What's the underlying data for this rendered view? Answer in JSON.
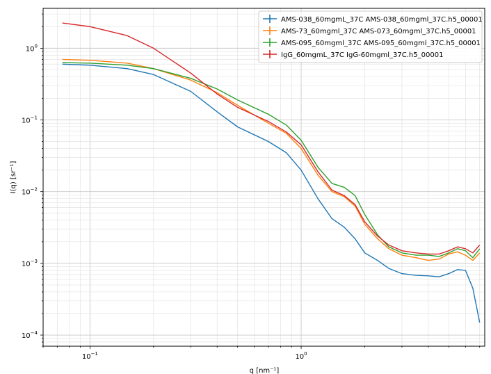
{
  "chart_data": {
    "type": "line",
    "title": "",
    "xlabel": "q [nm⁻¹]",
    "ylabel": "I(q) [sr⁻¹]",
    "xscale": "log",
    "yscale": "log",
    "xlim": [
      0.06,
      7.4
    ],
    "ylim": [
      7e-05,
      3.6
    ],
    "grid": "major and minor",
    "legend_position": "top-right",
    "x_ticks": [
      {
        "value": 0.1,
        "base": "10",
        "exp": "−1"
      },
      {
        "value": 1,
        "base": "10",
        "exp": "0"
      }
    ],
    "y_ticks": [
      {
        "value": 0.0001,
        "base": "10",
        "exp": "−4"
      },
      {
        "value": 0.001,
        "base": "10",
        "exp": "−3"
      },
      {
        "value": 0.01,
        "base": "10",
        "exp": "−2"
      },
      {
        "value": 0.1,
        "base": "10",
        "exp": "−1"
      },
      {
        "value": 1,
        "base": "10",
        "exp": "0"
      }
    ],
    "series": [
      {
        "name": "AMS-038_60mgmL_37C AMS-038_60mgml_37C.h5_00001",
        "color": "#1f77b4",
        "q": [
          0.074,
          0.1,
          0.15,
          0.2,
          0.3,
          0.4,
          0.5,
          0.7,
          0.85,
          1.0,
          1.2,
          1.4,
          1.6,
          1.8,
          2.0,
          2.3,
          2.6,
          3.0,
          3.5,
          4.0,
          4.5,
          5.0,
          5.5,
          6.0,
          6.5,
          7.0
        ],
        "I": [
          0.6,
          0.58,
          0.52,
          0.43,
          0.25,
          0.13,
          0.08,
          0.05,
          0.035,
          0.02,
          0.008,
          0.0042,
          0.0032,
          0.0022,
          0.0014,
          0.0011,
          0.00085,
          0.00072,
          0.00068,
          0.00067,
          0.00065,
          0.00072,
          0.00082,
          0.0008,
          0.00045,
          0.00015
        ]
      },
      {
        "name": "AMS-73_60mgml_37C AMS-073_60mgml_37C.h5_00001",
        "color": "#ff7f0e",
        "q": [
          0.074,
          0.1,
          0.15,
          0.2,
          0.3,
          0.4,
          0.5,
          0.7,
          0.85,
          1.0,
          1.2,
          1.4,
          1.6,
          1.8,
          2.0,
          2.3,
          2.6,
          3.0,
          3.5,
          4.0,
          4.5,
          5.0,
          5.5,
          6.0,
          6.5,
          7.0
        ],
        "I": [
          0.7,
          0.68,
          0.62,
          0.52,
          0.36,
          0.24,
          0.16,
          0.09,
          0.065,
          0.04,
          0.017,
          0.01,
          0.0085,
          0.0063,
          0.0035,
          0.0022,
          0.0016,
          0.0013,
          0.0012,
          0.0011,
          0.00115,
          0.00135,
          0.00145,
          0.0013,
          0.0011,
          0.0014
        ]
      },
      {
        "name": "AMS-095_60mgml_37C AMS-095_60mgml_37C.h5_00001",
        "color": "#2ca02c",
        "q": [
          0.074,
          0.1,
          0.15,
          0.2,
          0.3,
          0.4,
          0.5,
          0.7,
          0.85,
          1.0,
          1.2,
          1.4,
          1.6,
          1.8,
          2.0,
          2.3,
          2.6,
          3.0,
          3.5,
          4.0,
          4.5,
          5.0,
          5.5,
          6.0,
          6.5,
          7.0
        ],
        "I": [
          0.63,
          0.62,
          0.58,
          0.52,
          0.38,
          0.27,
          0.19,
          0.12,
          0.085,
          0.052,
          0.022,
          0.013,
          0.0115,
          0.0088,
          0.0048,
          0.0025,
          0.0017,
          0.0014,
          0.0013,
          0.0013,
          0.00125,
          0.0014,
          0.0016,
          0.0015,
          0.0012,
          0.0016
        ]
      },
      {
        "name": "IgG_60mgmL_37C IgG-60mgml_37C.h5_00001",
        "color": "#d62728",
        "q": [
          0.074,
          0.1,
          0.15,
          0.2,
          0.3,
          0.4,
          0.5,
          0.7,
          0.85,
          1.0,
          1.2,
          1.4,
          1.6,
          1.8,
          2.0,
          2.3,
          2.6,
          3.0,
          3.5,
          4.0,
          4.5,
          5.0,
          5.5,
          6.0,
          6.5,
          7.0
        ],
        "I": [
          2.25,
          2.0,
          1.5,
          1.0,
          0.45,
          0.23,
          0.15,
          0.095,
          0.068,
          0.045,
          0.019,
          0.0105,
          0.0088,
          0.0066,
          0.0038,
          0.0024,
          0.0018,
          0.0015,
          0.0014,
          0.00135,
          0.00135,
          0.0015,
          0.0017,
          0.0016,
          0.0014,
          0.0018
        ]
      }
    ]
  }
}
